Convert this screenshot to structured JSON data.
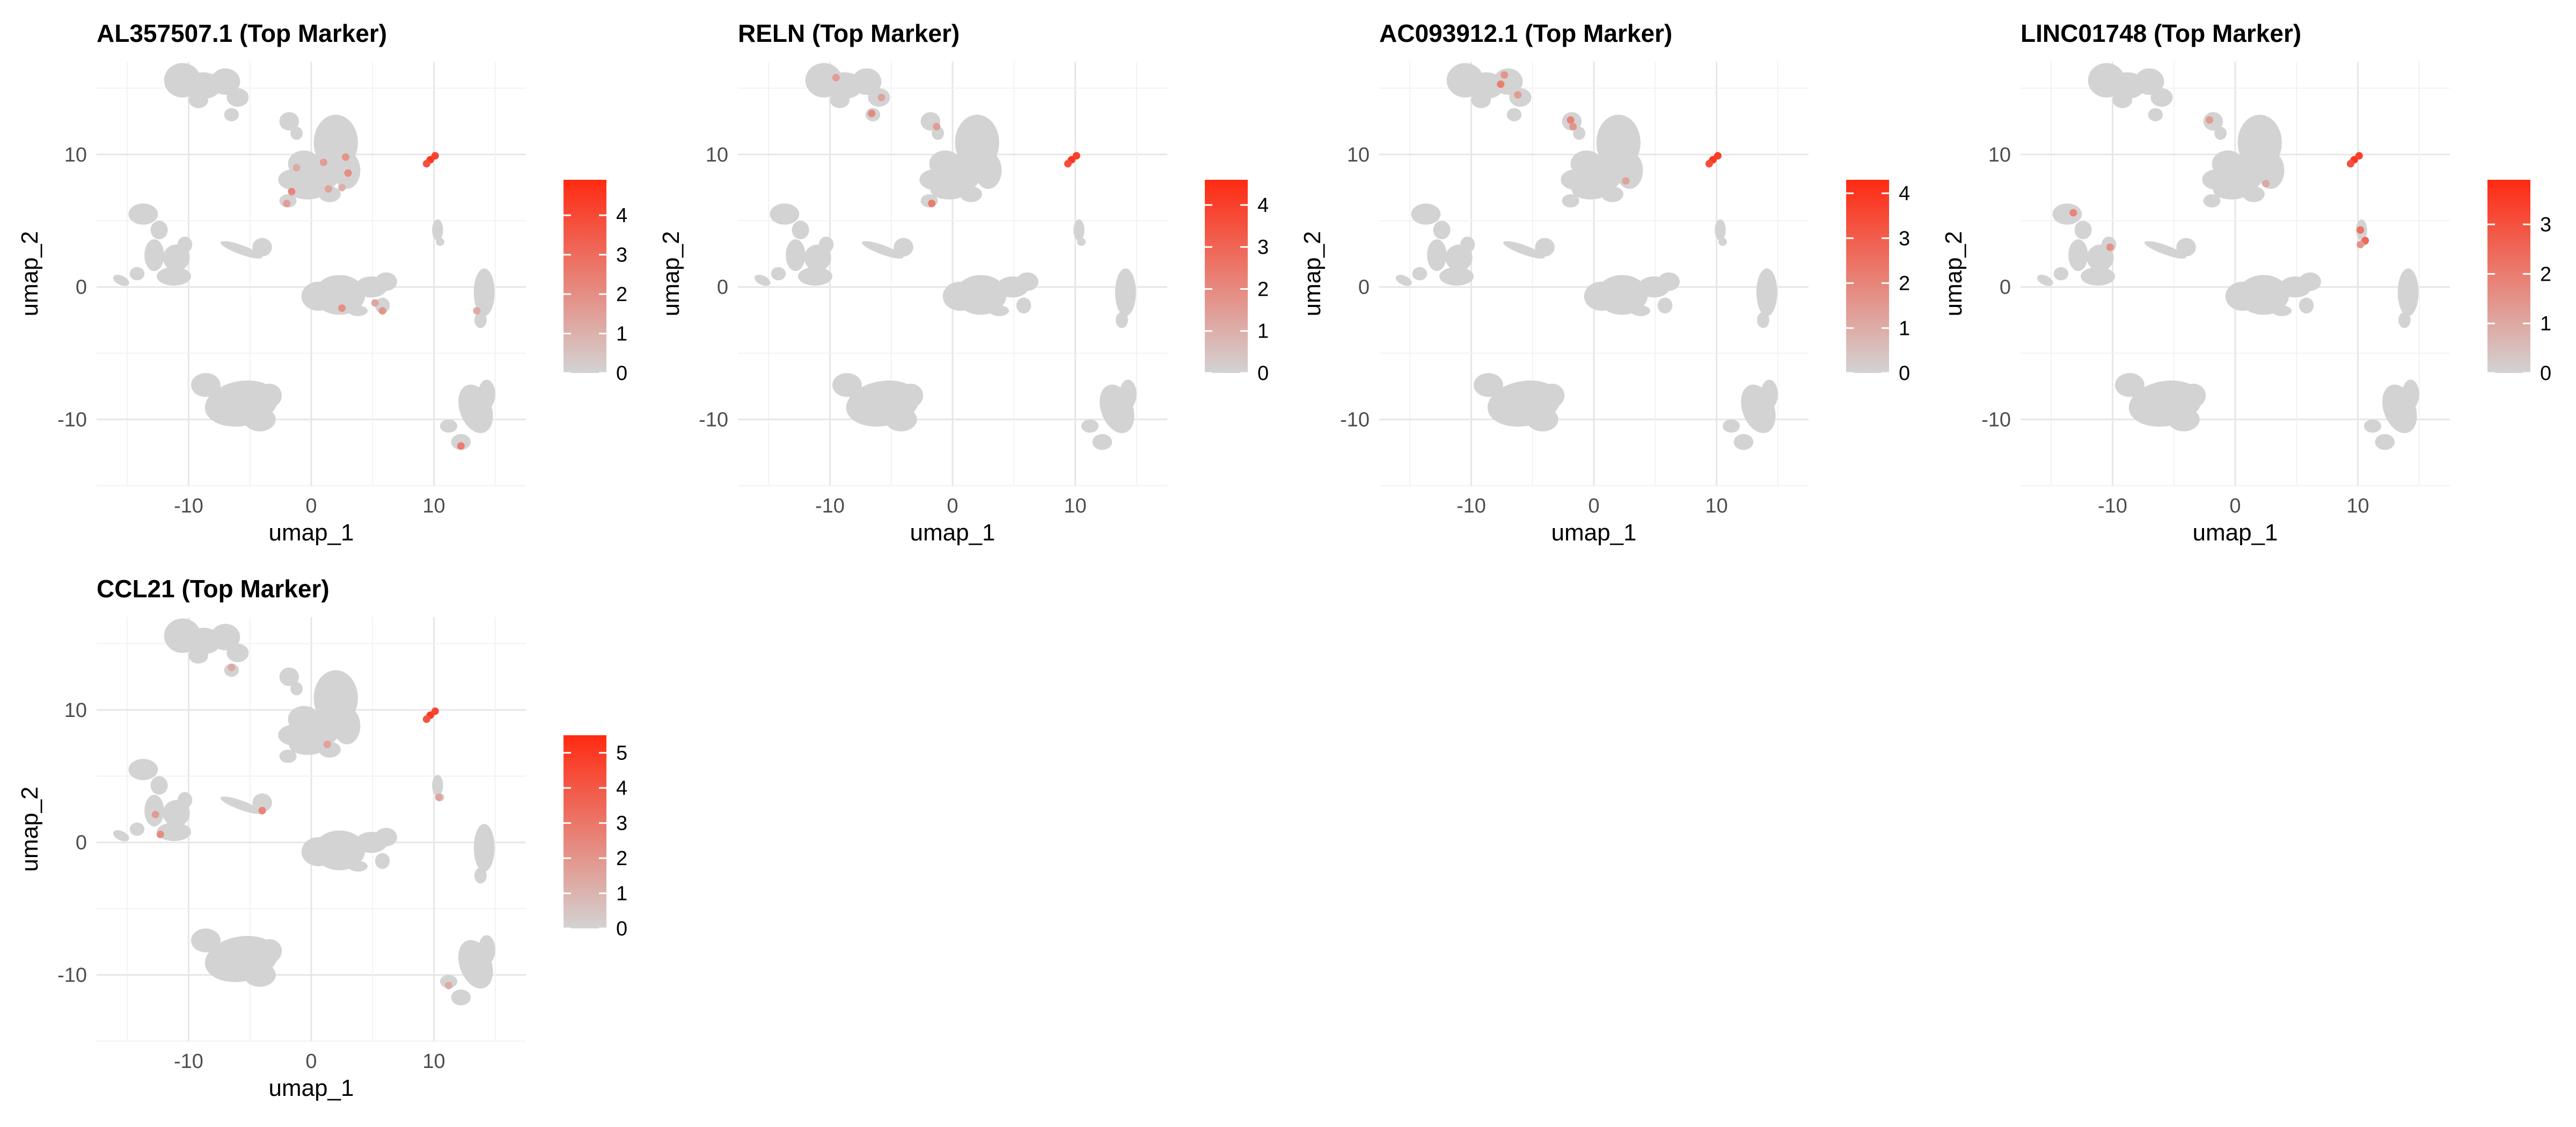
{
  "figure": {
    "background": "#ffffff"
  },
  "chart_data": [
    {
      "type": "scatter",
      "title": "AL357507.1 (Top Marker)",
      "xlabel": "umap_1",
      "ylabel": "umap_2",
      "xlim": [
        -17.5,
        17.5
      ],
      "ylim": [
        -15,
        17
      ],
      "x_ticks": [
        "-10",
        "0",
        "10"
      ],
      "y_ticks": [
        "10",
        "0",
        "-10"
      ],
      "grid": true,
      "legend": {
        "position": "right",
        "ticks": [
          "4",
          "3",
          "2",
          "1",
          "0"
        ],
        "max": 4.9,
        "low_color": "#d3d3d3",
        "high_color": "#ff2a12"
      },
      "highlights": [
        {
          "x": 9.7,
          "y": 9.6,
          "v": 4.5
        },
        {
          "x": 10.1,
          "y": 9.9,
          "v": 4.2
        },
        {
          "x": 9.4,
          "y": 9.3,
          "v": 3.8
        },
        {
          "x": 2.8,
          "y": 9.8,
          "v": 1.8
        },
        {
          "x": 1.0,
          "y": 9.4,
          "v": 1.6
        },
        {
          "x": 3.0,
          "y": 8.6,
          "v": 2.0
        },
        {
          "x": -1.2,
          "y": 9.0,
          "v": 1.2
        },
        {
          "x": -1.6,
          "y": 7.2,
          "v": 2.2
        },
        {
          "x": -2.0,
          "y": 6.3,
          "v": 1.5
        },
        {
          "x": 1.4,
          "y": 7.4,
          "v": 1.4
        },
        {
          "x": 2.5,
          "y": 7.5,
          "v": 1.0
        },
        {
          "x": 2.5,
          "y": -1.6,
          "v": 2.0
        },
        {
          "x": 5.2,
          "y": -1.2,
          "v": 1.3
        },
        {
          "x": 5.8,
          "y": -1.8,
          "v": 1.8
        },
        {
          "x": 13.5,
          "y": -1.8,
          "v": 1.2
        },
        {
          "x": 12.2,
          "y": -12.0,
          "v": 2.5
        }
      ]
    },
    {
      "type": "scatter",
      "title": "RELN (Top Marker)",
      "xlabel": "umap_1",
      "ylabel": "umap_2",
      "xlim": [
        -17.5,
        17.5
      ],
      "ylim": [
        -15,
        17
      ],
      "x_ticks": [
        "-10",
        "0",
        "10"
      ],
      "y_ticks": [
        "10",
        "0",
        "-10"
      ],
      "grid": true,
      "legend": {
        "position": "right",
        "ticks": [
          "4",
          "3",
          "2",
          "1",
          "0"
        ],
        "max": 4.6,
        "low_color": "#d3d3d3",
        "high_color": "#ff2a12"
      },
      "highlights": [
        {
          "x": 9.7,
          "y": 9.6,
          "v": 4.3
        },
        {
          "x": 10.1,
          "y": 9.9,
          "v": 4.0
        },
        {
          "x": 9.4,
          "y": 9.3,
          "v": 3.6
        },
        {
          "x": -9.5,
          "y": 15.8,
          "v": 1.5
        },
        {
          "x": -5.8,
          "y": 14.3,
          "v": 1.3
        },
        {
          "x": -6.6,
          "y": 13.1,
          "v": 2.0
        },
        {
          "x": -1.3,
          "y": 12.1,
          "v": 1.5
        },
        {
          "x": -1.7,
          "y": 6.3,
          "v": 2.4
        }
      ]
    },
    {
      "type": "scatter",
      "title": "AC093912.1 (Top Marker)",
      "xlabel": "umap_1",
      "ylabel": "umap_2",
      "xlim": [
        -17.5,
        17.5
      ],
      "ylim": [
        -15,
        17
      ],
      "x_ticks": [
        "-10",
        "0",
        "10"
      ],
      "y_ticks": [
        "10",
        "0",
        "-10"
      ],
      "grid": true,
      "legend": {
        "position": "right",
        "ticks": [
          "4",
          "3",
          "2",
          "1",
          "0"
        ],
        "max": 4.3,
        "low_color": "#d3d3d3",
        "high_color": "#ff2a12"
      },
      "highlights": [
        {
          "x": 9.7,
          "y": 9.6,
          "v": 4.0
        },
        {
          "x": 10.1,
          "y": 9.9,
          "v": 3.8
        },
        {
          "x": 9.4,
          "y": 9.3,
          "v": 3.4
        },
        {
          "x": -7.3,
          "y": 16.0,
          "v": 1.6
        },
        {
          "x": -7.6,
          "y": 15.3,
          "v": 2.2
        },
        {
          "x": -6.2,
          "y": 14.5,
          "v": 1.4
        },
        {
          "x": -1.9,
          "y": 12.6,
          "v": 2.0
        },
        {
          "x": -1.7,
          "y": 12.1,
          "v": 1.6
        },
        {
          "x": 2.6,
          "y": 8.0,
          "v": 1.2
        }
      ]
    },
    {
      "type": "scatter",
      "title": "LINC01748 (Top Marker)",
      "xlabel": "umap_1",
      "ylabel": "umap_2",
      "xlim": [
        -17.5,
        17.5
      ],
      "ylim": [
        -15,
        17
      ],
      "x_ticks": [
        "-10",
        "0",
        "10"
      ],
      "y_ticks": [
        "10",
        "0",
        "-10"
      ],
      "grid": true,
      "legend": {
        "position": "right",
        "ticks": [
          "3",
          "2",
          "1",
          "0"
        ],
        "max": 3.9,
        "low_color": "#d3d3d3",
        "high_color": "#ff2a12"
      },
      "highlights": [
        {
          "x": 9.7,
          "y": 9.6,
          "v": 3.6
        },
        {
          "x": 10.1,
          "y": 9.9,
          "v": 3.4
        },
        {
          "x": 9.4,
          "y": 9.3,
          "v": 3.0
        },
        {
          "x": -2.1,
          "y": 12.6,
          "v": 1.3
        },
        {
          "x": 2.5,
          "y": 7.8,
          "v": 1.0
        },
        {
          "x": -13.2,
          "y": 5.6,
          "v": 1.8
        },
        {
          "x": -10.2,
          "y": 3.0,
          "v": 1.5
        },
        {
          "x": 10.2,
          "y": 4.3,
          "v": 2.2
        },
        {
          "x": 10.6,
          "y": 3.5,
          "v": 2.5
        },
        {
          "x": 10.2,
          "y": 3.2,
          "v": 1.4
        }
      ]
    },
    {
      "type": "scatter",
      "title": "CCL21 (Top Marker)",
      "xlabel": "umap_1",
      "ylabel": "umap_2",
      "xlim": [
        -17.5,
        17.5
      ],
      "ylim": [
        -15,
        17
      ],
      "x_ticks": [
        "-10",
        "0",
        "10"
      ],
      "y_ticks": [
        "10",
        "0",
        "-10"
      ],
      "grid": true,
      "legend": {
        "position": "right",
        "ticks": [
          "5",
          "4",
          "3",
          "2",
          "1",
          "0"
        ],
        "max": 5.5,
        "low_color": "#d3d3d3",
        "high_color": "#ff2a12"
      },
      "highlights": [
        {
          "x": 9.7,
          "y": 9.6,
          "v": 5.0
        },
        {
          "x": 10.1,
          "y": 9.9,
          "v": 4.6
        },
        {
          "x": 9.4,
          "y": 9.3,
          "v": 4.2
        },
        {
          "x": -6.5,
          "y": 13.2,
          "v": 1.4
        },
        {
          "x": 1.3,
          "y": 7.4,
          "v": 1.6
        },
        {
          "x": 10.4,
          "y": 3.4,
          "v": 1.5
        },
        {
          "x": -12.7,
          "y": 2.1,
          "v": 1.8
        },
        {
          "x": -12.3,
          "y": 0.6,
          "v": 2.3
        },
        {
          "x": -4.0,
          "y": 2.4,
          "v": 2.6
        },
        {
          "x": 11.2,
          "y": -10.8,
          "v": 1.3
        }
      ]
    }
  ]
}
